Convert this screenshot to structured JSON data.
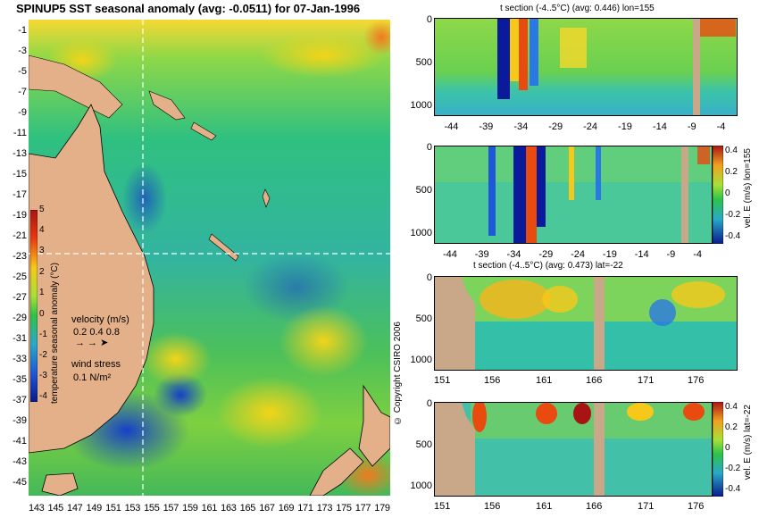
{
  "map": {
    "title": "SPINUP5 SST seasonal anomaly (avg: -0.0511) for 07-Jan-1996",
    "lat_ticks": [
      "-1",
      "-3",
      "-5",
      "-7",
      "-9",
      "-11",
      "-13",
      "-15",
      "-17",
      "-19",
      "-21",
      "-23",
      "-25",
      "-27",
      "-29",
      "-31",
      "-33",
      "-35",
      "-37",
      "-39",
      "-41",
      "-43",
      "-45"
    ],
    "lon_ticks": [
      "143",
      "145",
      "147",
      "149",
      "151",
      "153",
      "155",
      "157",
      "159",
      "161",
      "163",
      "165",
      "167",
      "169",
      "171",
      "173",
      "175",
      "177",
      "179"
    ],
    "colorbar": {
      "label": "temperature seasonal anomaly (°C)",
      "ticks": [
        "5",
        "4",
        "3",
        "2",
        "1",
        "0",
        "-1",
        "-2",
        "-3",
        "-4"
      ]
    },
    "velocity_legend": {
      "title": "velocity (m/s)",
      "values": "0.2 0.4 0.8"
    },
    "wind_legend": {
      "title": "wind stress",
      "value": "0.1 N/m²"
    },
    "copyright": "© Copyright CSIRO 2006",
    "colors": {
      "land": "#e4b08a",
      "ocean_mid": "#2ec24a",
      "warm": "#f5d21a",
      "cool": "#2a78e4",
      "crosshair": "#ffffff"
    }
  },
  "panels": {
    "p1": {
      "title": "t section (-4..5°C) (avg: 0.446) lon=155",
      "yticks": [
        "0",
        "500",
        "1000"
      ],
      "xticks": [
        "-44",
        "-39",
        "-34",
        "-29",
        "-24",
        "-19",
        "-14",
        "-9",
        "-4"
      ]
    },
    "p2": {
      "title": "",
      "yticks": [
        "0",
        "500",
        "1000"
      ],
      "xticks": [
        "-44",
        "-39",
        "-34",
        "-29",
        "-24",
        "-19",
        "-14",
        "-9",
        "-4"
      ],
      "cb_ticks": [
        "0.4",
        "0.2",
        "0",
        "-0.2",
        "-0.4"
      ],
      "cb_label": "vel. E (m/s) lon=155"
    },
    "p3": {
      "title": "t section (-4..5°C) (avg: 0.473) lat=-22",
      "yticks": [
        "0",
        "500",
        "1000"
      ],
      "xticks": [
        "151",
        "156",
        "161",
        "166",
        "171",
        "176"
      ]
    },
    "p4": {
      "title": "",
      "yticks": [
        "0",
        "500",
        "1000"
      ],
      "xticks": [
        "151",
        "156",
        "161",
        "166",
        "171",
        "176"
      ],
      "cb_ticks": [
        "0.4",
        "0.2",
        "0",
        "-0.2",
        "-0.4"
      ],
      "cb_label": "vel. E (m/s) lat=-22"
    }
  }
}
